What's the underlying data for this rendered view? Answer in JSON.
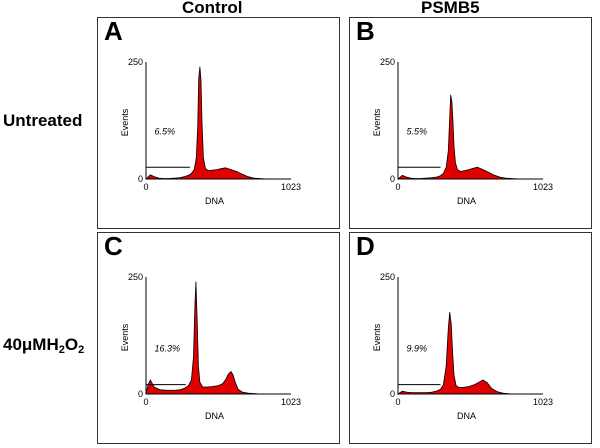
{
  "columns": [
    "Control",
    "PSMB5"
  ],
  "rows": [
    {
      "label": "Untreated"
    },
    {
      "label_main": "40μMH",
      "label_sub1": "2",
      "label_mid": "O",
      "label_sub2": "2"
    }
  ],
  "colors": {
    "fill": "#e00000",
    "line": "#000000",
    "frame": "#333333"
  },
  "chart_data": [
    {
      "type": "area",
      "panel": "A",
      "title": "Control / Untreated",
      "xlabel": "DNA",
      "ylabel": "Events",
      "xlim": [
        0,
        1023
      ],
      "ylim": [
        0,
        250
      ],
      "xticks": [
        "0",
        "1023"
      ],
      "yticks": [
        "0",
        "250"
      ],
      "gate_percent": "6.5%",
      "gate_x_end": 310,
      "gate_y": 25,
      "x": [
        0,
        30,
        60,
        90,
        120,
        160,
        200,
        240,
        270,
        300,
        320,
        340,
        355,
        365,
        372,
        380,
        388,
        395,
        405,
        420,
        440,
        470,
        500,
        530,
        560,
        600,
        640,
        680,
        720,
        760,
        800,
        860,
        1023
      ],
      "values": [
        0,
        9,
        5,
        2,
        1,
        1,
        2,
        3,
        5,
        8,
        12,
        20,
        45,
        110,
        215,
        240,
        210,
        120,
        45,
        22,
        18,
        19,
        20,
        22,
        24,
        20,
        16,
        10,
        5,
        2,
        1,
        0,
        0
      ]
    },
    {
      "type": "area",
      "panel": "B",
      "title": "PSMB5 / Untreated",
      "xlabel": "DNA",
      "ylabel": "Events",
      "xlim": [
        0,
        1023
      ],
      "ylim": [
        0,
        250
      ],
      "xticks": [
        "0",
        "1023"
      ],
      "yticks": [
        "0",
        "250"
      ],
      "gate_percent": "5.5%",
      "gate_x_end": 300,
      "gate_y": 25,
      "x": [
        0,
        30,
        60,
        90,
        120,
        160,
        200,
        240,
        270,
        300,
        320,
        340,
        355,
        365,
        372,
        380,
        388,
        395,
        405,
        420,
        440,
        470,
        500,
        530,
        560,
        600,
        640,
        680,
        720,
        760,
        800,
        860,
        1023
      ],
      "values": [
        0,
        8,
        4,
        2,
        1,
        1,
        2,
        3,
        4,
        7,
        12,
        25,
        60,
        130,
        180,
        165,
        120,
        70,
        35,
        20,
        16,
        18,
        20,
        23,
        25,
        20,
        14,
        8,
        4,
        2,
        1,
        0,
        0
      ]
    },
    {
      "type": "area",
      "panel": "C",
      "title": "Control / 40μMH2O2",
      "xlabel": "DNA",
      "ylabel": "Events",
      "xlim": [
        0,
        1023
      ],
      "ylim": [
        0,
        250
      ],
      "xticks": [
        "0",
        "1023"
      ],
      "yticks": [
        "0",
        "250"
      ],
      "gate_percent": "16.3%",
      "gate_x_end": 280,
      "gate_y": 20,
      "x": [
        0,
        15,
        30,
        60,
        100,
        150,
        200,
        240,
        270,
        300,
        320,
        335,
        345,
        352,
        360,
        370,
        380,
        400,
        430,
        470,
        510,
        540,
        560,
        580,
        600,
        615,
        630,
        650,
        680,
        720,
        800,
        1023
      ],
      "values": [
        0,
        20,
        30,
        14,
        9,
        8,
        8,
        9,
        12,
        18,
        30,
        80,
        190,
        240,
        170,
        60,
        25,
        15,
        15,
        16,
        18,
        22,
        30,
        42,
        48,
        40,
        25,
        10,
        4,
        2,
        0,
        0
      ]
    },
    {
      "type": "area",
      "panel": "D",
      "title": "PSMB5 / 40μMH2O2",
      "xlabel": "DNA",
      "ylabel": "Events",
      "xlim": [
        0,
        1023
      ],
      "ylim": [
        0,
        250
      ],
      "xticks": [
        "0",
        "1023"
      ],
      "yticks": [
        "0",
        "250"
      ],
      "gate_percent": "9.9%",
      "gate_x_end": 300,
      "gate_y": 20,
      "x": [
        0,
        30,
        60,
        100,
        150,
        200,
        240,
        270,
        300,
        320,
        340,
        355,
        365,
        375,
        385,
        395,
        410,
        430,
        460,
        500,
        540,
        570,
        600,
        630,
        660,
        700,
        740,
        800,
        1023
      ],
      "values": [
        0,
        6,
        4,
        3,
        3,
        3,
        4,
        6,
        10,
        20,
        60,
        140,
        175,
        150,
        90,
        40,
        18,
        14,
        14,
        16,
        20,
        25,
        30,
        24,
        12,
        5,
        2,
        0,
        0
      ]
    }
  ]
}
